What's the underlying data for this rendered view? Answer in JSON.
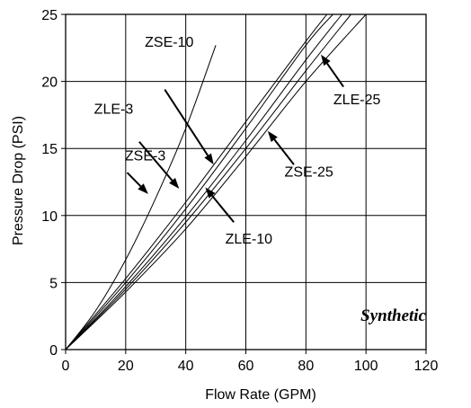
{
  "chart_data": {
    "type": "line",
    "title": "",
    "xlabel": "Flow Rate (GPM)",
    "ylabel": "Pressure Drop (PSI)",
    "xlim": [
      0,
      120
    ],
    "ylim": [
      0,
      25
    ],
    "xticks": [
      0,
      20,
      40,
      60,
      80,
      100,
      120
    ],
    "yticks": [
      0,
      5,
      10,
      15,
      20,
      25
    ],
    "x_tick_labels": [
      "0",
      "20",
      "40",
      "60",
      "80",
      "100",
      "120"
    ],
    "y_tick_labels": [
      "0",
      "5",
      "10",
      "15",
      "20",
      "25"
    ],
    "grid": true,
    "annotation": "Synthetic",
    "series": [
      {
        "name": "ZSE-3",
        "x": [
          0,
          10,
          20,
          30,
          40,
          50
        ],
        "y": [
          0,
          2.9,
          6.7,
          11.3,
          16.5,
          22.7
        ]
      },
      {
        "name": "ZLE-3",
        "x": [
          0,
          20,
          40,
          60,
          80,
          87
        ],
        "y": [
          0,
          5.3,
          11.0,
          17.0,
          23.0,
          25.0
        ]
      },
      {
        "name": "ZSE-10",
        "x": [
          0,
          20,
          40,
          60,
          80,
          89
        ],
        "y": [
          0,
          5.0,
          10.5,
          16.5,
          22.7,
          25.0
        ]
      },
      {
        "name": "ZLE-10",
        "x": [
          0,
          20,
          40,
          60,
          80,
          92
        ],
        "y": [
          0,
          4.7,
          9.9,
          15.6,
          21.6,
          25.0
        ]
      },
      {
        "name": "ZSE-25",
        "x": [
          0,
          20,
          40,
          60,
          80,
          95
        ],
        "y": [
          0,
          4.5,
          9.5,
          15.0,
          20.8,
          25.0
        ]
      },
      {
        "name": "ZLE-25",
        "x": [
          0,
          20,
          40,
          60,
          80,
          100
        ],
        "y": [
          0,
          4.3,
          9.0,
          14.4,
          20.0,
          25.0
        ]
      }
    ],
    "callouts": [
      {
        "series": "ZSE-3",
        "label": "ZSE-3",
        "text_x": 26.5,
        "text_y": 14.1,
        "arrow_from": [
          20.5,
          13.2
        ],
        "arrow_to": [
          27.5,
          11.6
        ]
      },
      {
        "series": "ZLE-3",
        "label": "ZLE-3",
        "text_x": 16,
        "text_y": 17.6,
        "arrow_from": [
          24.5,
          15.5
        ],
        "arrow_to": [
          37.8,
          12.0
        ]
      },
      {
        "series": "ZSE-10",
        "label": "ZSE-10",
        "text_x": 34.5,
        "text_y": 22.6,
        "arrow_from": [
          33,
          19.4
        ],
        "arrow_to": [
          49.3,
          13.8
        ]
      },
      {
        "series": "ZLE-10",
        "label": "ZLE-10",
        "text_x": 61,
        "text_y": 7.9,
        "arrow_from": [
          56,
          9.5
        ],
        "arrow_to": [
          46.5,
          12.1
        ]
      },
      {
        "series": "ZSE-25",
        "label": "ZSE-25",
        "text_x": 81,
        "text_y": 12.9,
        "arrow_from": [
          76,
          13.8
        ],
        "arrow_to": [
          67.3,
          16.3
        ]
      },
      {
        "series": "ZLE-25",
        "label": "ZLE-25",
        "text_x": 97,
        "text_y": 18.3,
        "arrow_from": [
          92.5,
          19.6
        ],
        "arrow_to": [
          85,
          22.0
        ]
      }
    ]
  }
}
